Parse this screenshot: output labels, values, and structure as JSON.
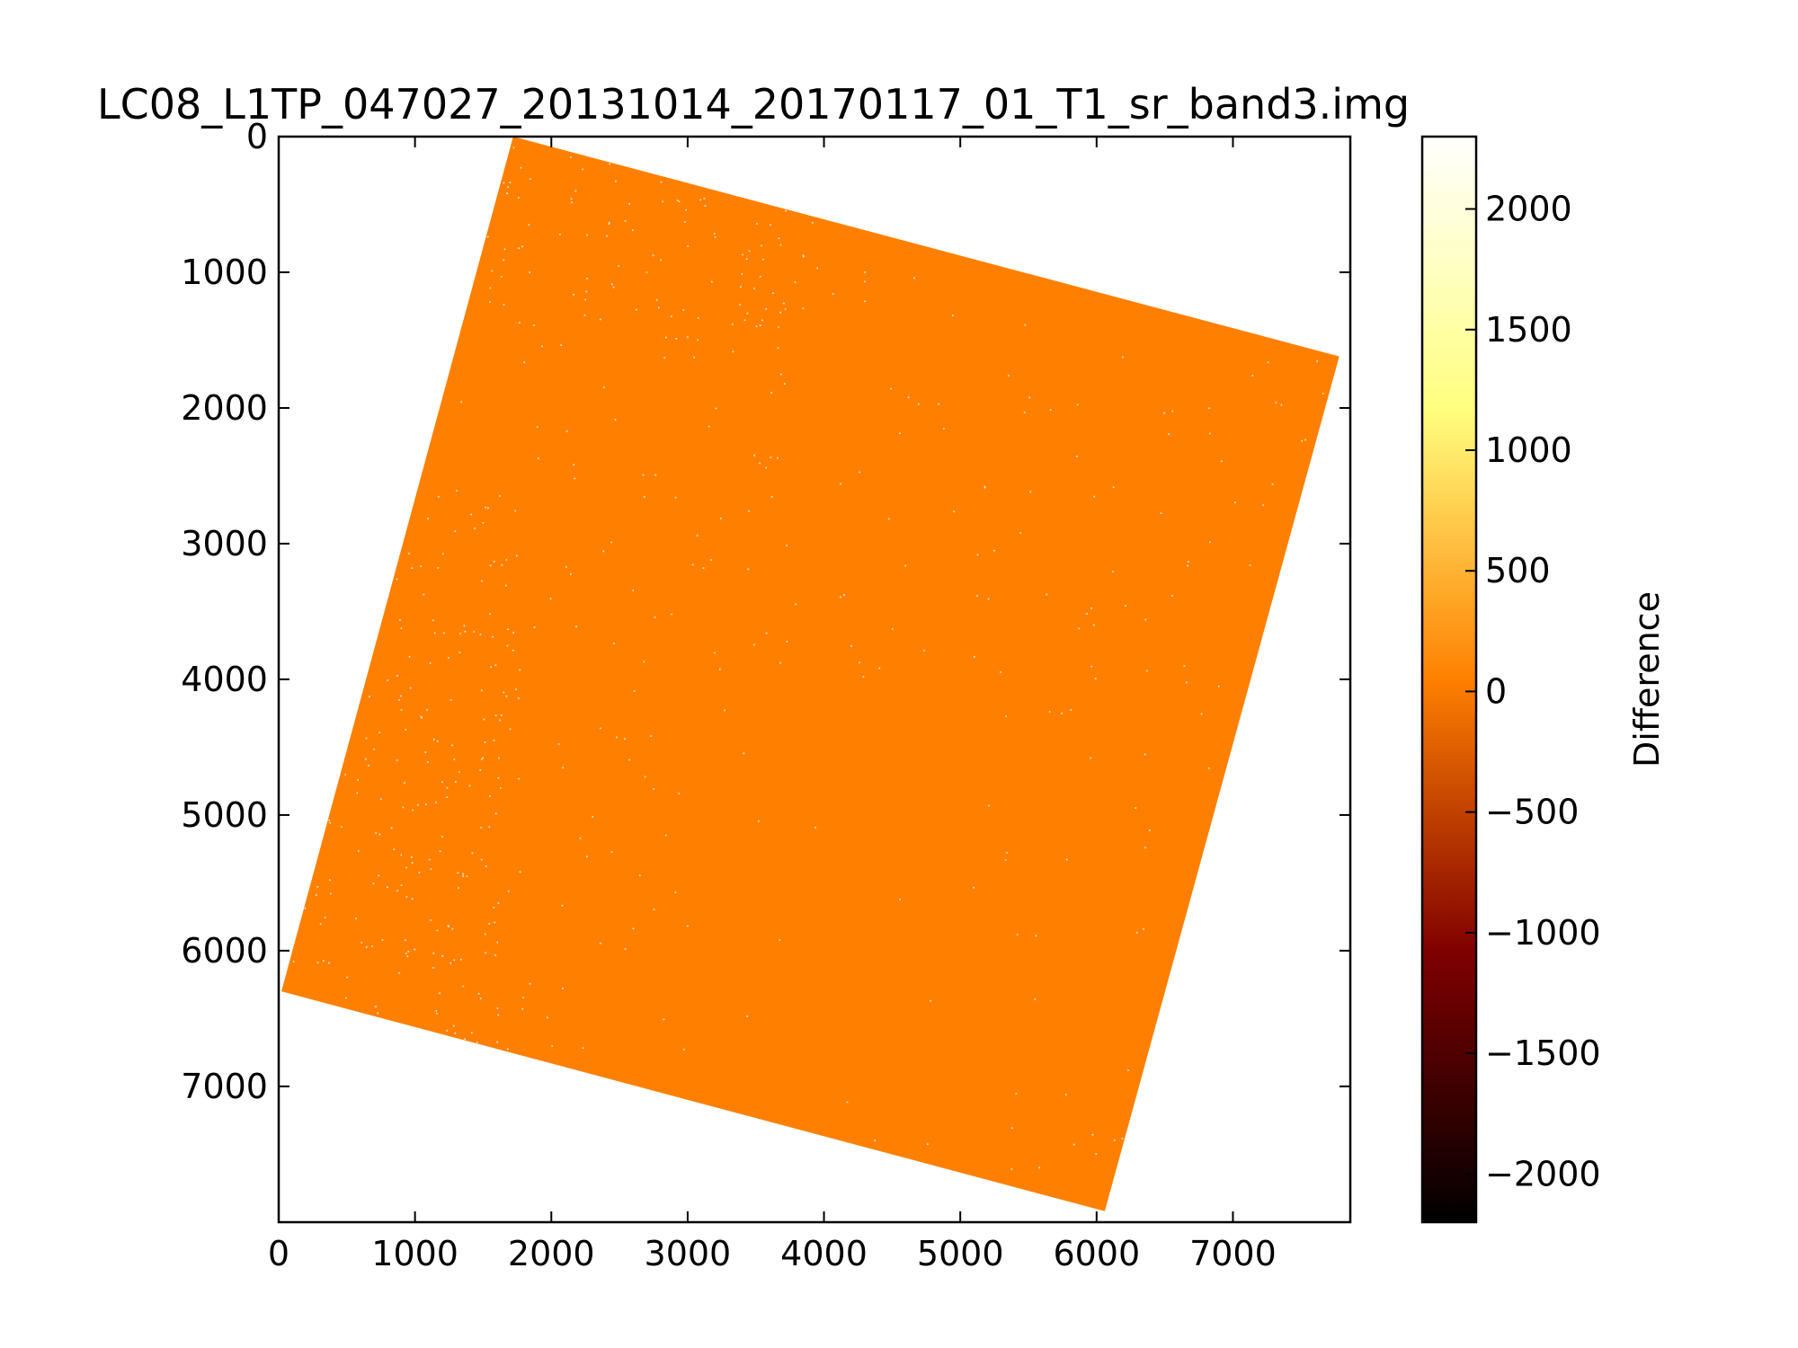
{
  "chart_data": {
    "type": "heatmap",
    "title": "LC08_L1TP_047027_20131014_20170117_01_T1_sr_band3.img",
    "xlabel": "",
    "ylabel": "",
    "xlim": [
      0,
      7861
    ],
    "ylim": [
      8001,
      0
    ],
    "x_ticks": [
      0,
      1000,
      2000,
      3000,
      4000,
      5000,
      6000,
      7000
    ],
    "y_ticks": [
      0,
      1000,
      2000,
      3000,
      4000,
      5000,
      6000,
      7000
    ],
    "x_tick_labels": [
      "0",
      "1000",
      "2000",
      "3000",
      "4000",
      "5000",
      "6000",
      "7000"
    ],
    "y_tick_labels": [
      "0",
      "1000",
      "2000",
      "3000",
      "4000",
      "5000",
      "6000",
      "7000"
    ],
    "scene_corners": [
      [
        1720,
        0
      ],
      [
        7780,
        1620
      ],
      [
        6060,
        7920
      ],
      [
        20,
        6300
      ]
    ],
    "dominant_value": 0,
    "scattered_values": "high positive differences (white speckle)",
    "colormap": "afmhot",
    "colorbar": {
      "label": "Difference",
      "range": [
        -2200,
        2300
      ],
      "ticks": [
        2000,
        1500,
        1000,
        500,
        0,
        -500,
        -1000,
        -1500,
        -2000
      ],
      "tick_labels": [
        "2000",
        "1500",
        "1000",
        "500",
        "0",
        "−500",
        "−1000",
        "−1500",
        "−2000"
      ]
    },
    "grid": false
  },
  "colors": {
    "scene_fill": "#ff8000",
    "speckle": "#ffffff"
  }
}
